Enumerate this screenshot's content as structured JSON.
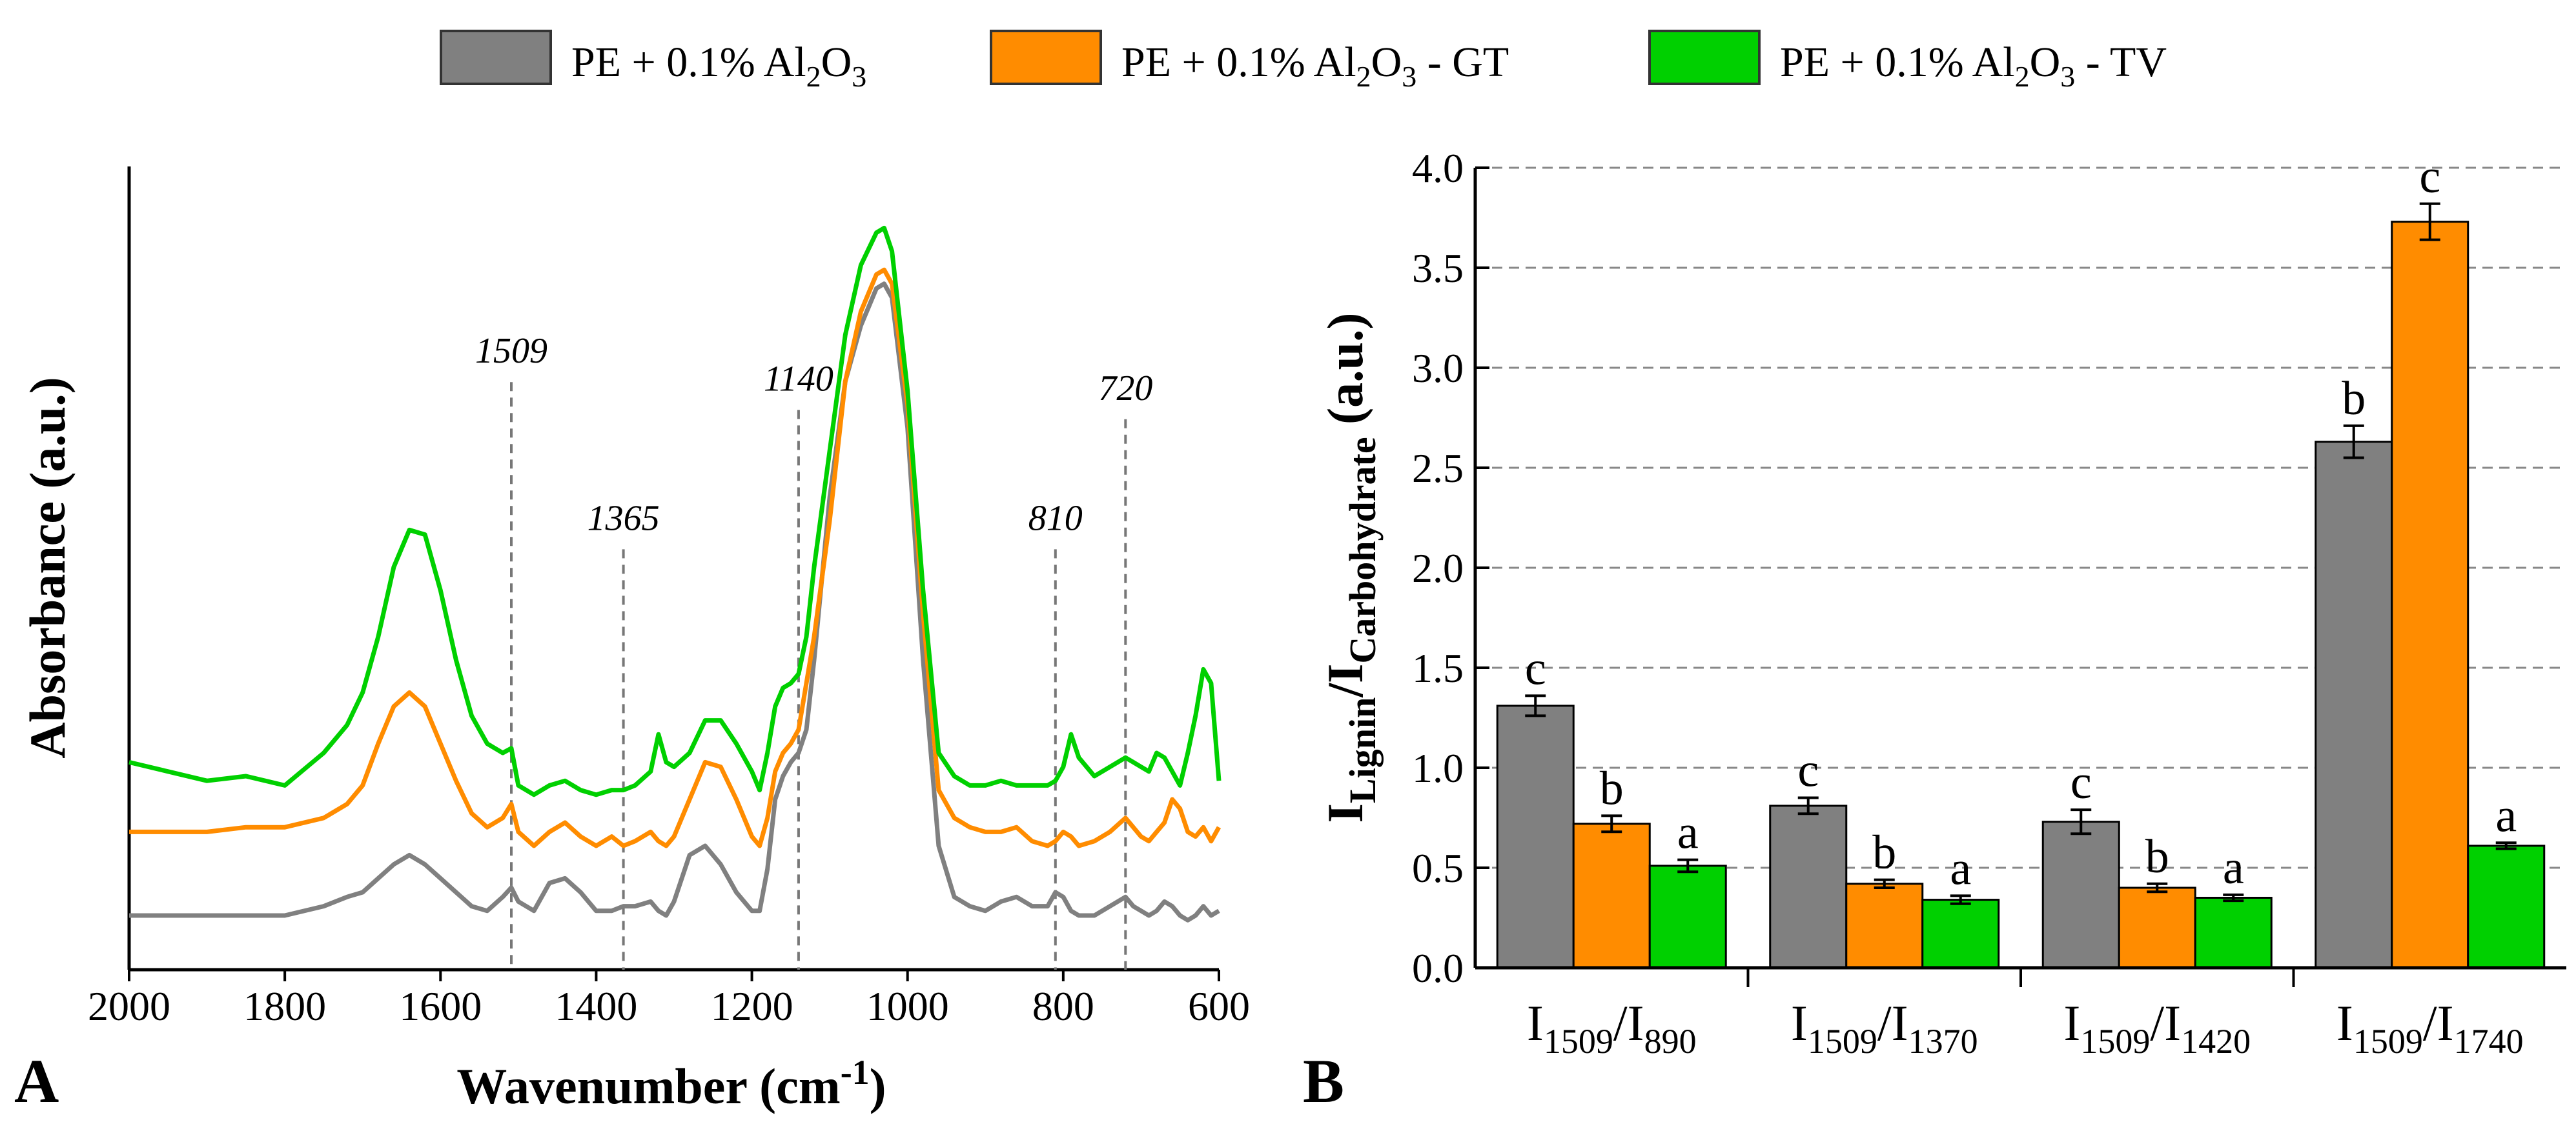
{
  "legend": [
    {
      "name": "PE + 0.1% Al",
      "sub1": "2",
      "mid": "O",
      "sub2": "3",
      "suffix": "",
      "color": "#808080"
    },
    {
      "name": "PE + 0.1% Al",
      "sub1": "2",
      "mid": "O",
      "sub2": "3",
      "suffix": " - GT",
      "color": "#FF8C00"
    },
    {
      "name": "PE + 0.1% Al",
      "sub1": "2",
      "mid": "O",
      "sub2": "3",
      "suffix": " - TV",
      "color": "#00D000"
    }
  ],
  "chart_data": [
    {
      "type": "line",
      "panel": "A",
      "xlabel": "Wavenumber (cm",
      "xlabel_sup": "-1",
      "xlabel_close": ")",
      "ylabel": "Absorbance (a.u.)",
      "xlim": [
        2000,
        600
      ],
      "ylim": [
        0,
        1.6
      ],
      "x_ticks": [
        "2000",
        "1800",
        "1600",
        "1400",
        "1200",
        "1000",
        "800",
        "600"
      ],
      "peak_markers": [
        {
          "x": 1509,
          "label": "1509",
          "label_y": 1.24
        },
        {
          "x": 1365,
          "label": "1365",
          "label_y": 0.88
        },
        {
          "x": 1140,
          "label": "1140",
          "label_y": 1.18
        },
        {
          "x": 810,
          "label": "810",
          "label_y": 0.88
        },
        {
          "x": 720,
          "label": "720",
          "label_y": 1.16
        }
      ],
      "x": [
        2000,
        1950,
        1900,
        1850,
        1800,
        1750,
        1720,
        1700,
        1680,
        1660,
        1640,
        1620,
        1600,
        1580,
        1560,
        1540,
        1520,
        1509,
        1500,
        1480,
        1460,
        1440,
        1420,
        1400,
        1380,
        1365,
        1350,
        1330,
        1320,
        1310,
        1300,
        1280,
        1260,
        1240,
        1220,
        1200,
        1190,
        1180,
        1170,
        1160,
        1150,
        1140,
        1130,
        1120,
        1100,
        1080,
        1060,
        1040,
        1030,
        1020,
        1000,
        980,
        960,
        940,
        920,
        900,
        880,
        860,
        840,
        820,
        810,
        800,
        790,
        780,
        760,
        740,
        720,
        710,
        700,
        690,
        680,
        670,
        660,
        650,
        640,
        630,
        620,
        610,
        600
      ],
      "series": [
        {
          "name": "PE + 0.1% Al2O3",
          "color": "#808080",
          "values": [
            0.05,
            0.05,
            0.05,
            0.05,
            0.05,
            0.07,
            0.09,
            0.1,
            0.13,
            0.16,
            0.18,
            0.16,
            0.13,
            0.1,
            0.07,
            0.06,
            0.09,
            0.11,
            0.08,
            0.06,
            0.12,
            0.13,
            0.1,
            0.06,
            0.06,
            0.07,
            0.07,
            0.08,
            0.06,
            0.05,
            0.08,
            0.18,
            0.2,
            0.16,
            0.1,
            0.06,
            0.06,
            0.15,
            0.3,
            0.35,
            0.38,
            0.4,
            0.45,
            0.6,
            0.95,
            1.2,
            1.32,
            1.4,
            1.41,
            1.38,
            1.1,
            0.6,
            0.2,
            0.09,
            0.07,
            0.06,
            0.08,
            0.09,
            0.07,
            0.07,
            0.1,
            0.09,
            0.06,
            0.05,
            0.05,
            0.07,
            0.09,
            0.07,
            0.06,
            0.05,
            0.06,
            0.08,
            0.07,
            0.05,
            0.04,
            0.05,
            0.07,
            0.05,
            0.06
          ]
        },
        {
          "name": "PE + 0.1% Al2O3 - GT",
          "color": "#FF8C00",
          "values": [
            0.23,
            0.23,
            0.23,
            0.24,
            0.24,
            0.26,
            0.29,
            0.33,
            0.42,
            0.5,
            0.53,
            0.5,
            0.42,
            0.34,
            0.27,
            0.24,
            0.26,
            0.29,
            0.23,
            0.2,
            0.23,
            0.25,
            0.22,
            0.2,
            0.22,
            0.2,
            0.21,
            0.23,
            0.21,
            0.2,
            0.22,
            0.3,
            0.38,
            0.37,
            0.3,
            0.22,
            0.2,
            0.26,
            0.36,
            0.4,
            0.42,
            0.45,
            0.55,
            0.65,
            0.9,
            1.2,
            1.35,
            1.43,
            1.44,
            1.41,
            1.15,
            0.7,
            0.32,
            0.26,
            0.24,
            0.23,
            0.23,
            0.24,
            0.21,
            0.2,
            0.21,
            0.23,
            0.22,
            0.2,
            0.21,
            0.23,
            0.26,
            0.24,
            0.22,
            0.21,
            0.23,
            0.25,
            0.3,
            0.28,
            0.23,
            0.22,
            0.24,
            0.21,
            0.24
          ]
        },
        {
          "name": "PE + 0.1% Al2O3 - TV",
          "color": "#00D000",
          "values": [
            0.38,
            0.36,
            0.34,
            0.35,
            0.33,
            0.4,
            0.46,
            0.53,
            0.65,
            0.8,
            0.88,
            0.87,
            0.75,
            0.6,
            0.48,
            0.42,
            0.4,
            0.41,
            0.33,
            0.31,
            0.33,
            0.34,
            0.32,
            0.31,
            0.32,
            0.32,
            0.33,
            0.36,
            0.44,
            0.38,
            0.37,
            0.4,
            0.47,
            0.47,
            0.42,
            0.36,
            0.32,
            0.4,
            0.5,
            0.54,
            0.55,
            0.57,
            0.65,
            0.8,
            1.05,
            1.3,
            1.45,
            1.52,
            1.53,
            1.48,
            1.18,
            0.75,
            0.4,
            0.35,
            0.33,
            0.33,
            0.34,
            0.33,
            0.33,
            0.33,
            0.34,
            0.37,
            0.44,
            0.39,
            0.35,
            0.37,
            0.39,
            0.38,
            0.37,
            0.36,
            0.4,
            0.39,
            0.36,
            0.33,
            0.4,
            0.48,
            0.58,
            0.55,
            0.34
          ]
        }
      ]
    },
    {
      "type": "bar",
      "panel": "B",
      "ylabel": "I",
      "ylabel_sub1": "Lignin",
      "ylabel_mid": "/I",
      "ylabel_sub2": "Carbohydrate",
      "ylabel_unit": " (a.u.)",
      "ylim": [
        0.0,
        4.0
      ],
      "y_ticks": [
        "0.0",
        "0.5",
        "1.0",
        "1.5",
        "2.0",
        "2.5",
        "3.0",
        "3.5",
        "4.0"
      ],
      "grid": "horizontal dashed",
      "categories": [
        {
          "a": "I",
          "a_sub": "1509",
          "b": "/I",
          "b_sub": "890"
        },
        {
          "a": "I",
          "a_sub": "1509",
          "b": "/I",
          "b_sub": "1370"
        },
        {
          "a": "I",
          "a_sub": "1509",
          "b": "/I",
          "b_sub": "1420"
        },
        {
          "a": "I",
          "a_sub": "1509",
          "b": "/I",
          "b_sub": "1740"
        }
      ],
      "series": [
        {
          "name": "PE + 0.1% Al2O3",
          "color": "#808080",
          "values": [
            1.31,
            0.81,
            0.73,
            2.63
          ],
          "errors": [
            0.05,
            0.04,
            0.06,
            0.08
          ],
          "labels": [
            "c",
            "c",
            "c",
            "b"
          ]
        },
        {
          "name": "PE + 0.1% Al2O3 - GT",
          "color": "#FF8C00",
          "values": [
            0.72,
            0.42,
            0.4,
            3.73
          ],
          "errors": [
            0.04,
            0.02,
            0.02,
            0.09
          ],
          "labels": [
            "b",
            "b",
            "b",
            "c"
          ]
        },
        {
          "name": "PE + 0.1% Al2O3 - TV",
          "color": "#00D000",
          "values": [
            0.51,
            0.34,
            0.35,
            0.61
          ],
          "errors": [
            0.03,
            0.02,
            0.015,
            0.015
          ],
          "labels": [
            "a",
            "a",
            "a",
            "a"
          ]
        }
      ]
    }
  ]
}
